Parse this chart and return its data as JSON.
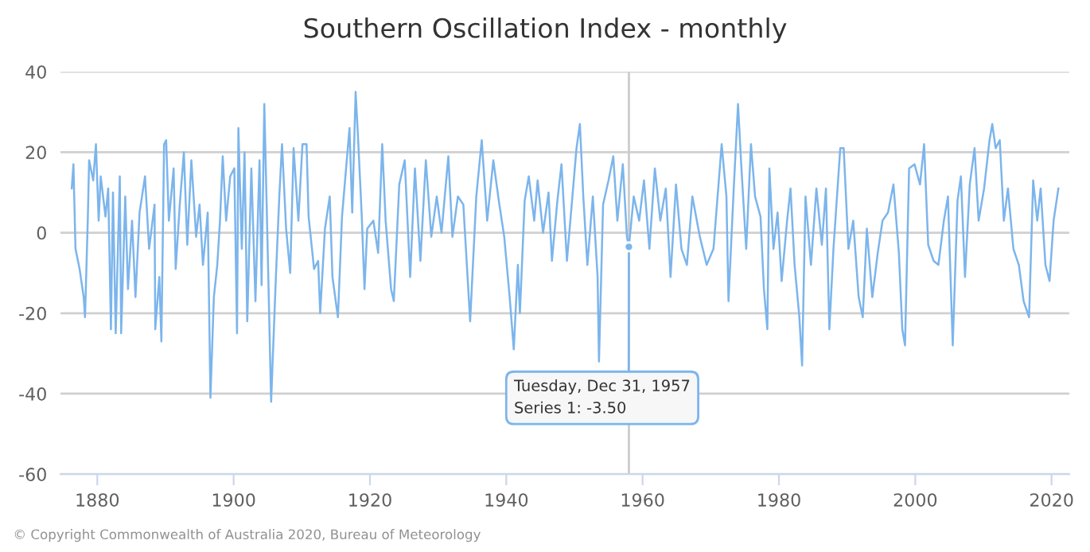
{
  "chart_data": {
    "type": "line",
    "title": "Southern Oscillation Index - monthly",
    "x": [
      1876.25,
      1876.5,
      1876.8,
      1877.4,
      1878.0,
      1878.2,
      1878.6,
      1878.8,
      1879.4,
      1879.8,
      1880.2,
      1880.5,
      1881.2,
      1881.6,
      1882.0,
      1882.3,
      1882.7,
      1883.3,
      1883.5,
      1884.1,
      1884.5,
      1885.1,
      1885.6,
      1886.2,
      1887.0,
      1887.6,
      1888.4,
      1888.5,
      1889.1,
      1889.4,
      1889.8,
      1890.1,
      1890.5,
      1891.2,
      1891.5,
      1892.1,
      1892.7,
      1893.2,
      1893.8,
      1894.5,
      1895.0,
      1895.5,
      1896.2,
      1896.6,
      1897.1,
      1897.6,
      1898.0,
      1898.4,
      1898.9,
      1899.5,
      1900.1,
      1900.5,
      1900.7,
      1901.2,
      1901.6,
      1902.0,
      1902.6,
      1903.2,
      1903.8,
      1904.1,
      1904.5,
      1904.9,
      1905.5,
      1906.2,
      1906.7,
      1907.1,
      1907.7,
      1908.3,
      1908.8,
      1909.5,
      1910.1,
      1910.7,
      1911.0,
      1911.8,
      1912.4,
      1912.7,
      1913.4,
      1914.1,
      1914.5,
      1915.3,
      1915.9,
      1916.5,
      1917.0,
      1917.4,
      1917.9,
      1918.3,
      1918.8,
      1919.2,
      1919.6,
      1920.5,
      1921.2,
      1921.8,
      1922.3,
      1923.1,
      1923.5,
      1924.3,
      1925.1,
      1925.9,
      1926.6,
      1927.4,
      1928.2,
      1929.0,
      1929.8,
      1930.5,
      1931.5,
      1932.1,
      1932.9,
      1933.7,
      1934.7,
      1935.6,
      1936.4,
      1937.2,
      1938.1,
      1938.9,
      1939.7,
      1940.5,
      1941.1,
      1941.7,
      1942.0,
      1942.7,
      1943.3,
      1944.1,
      1944.6,
      1945.4,
      1946.2,
      1946.7,
      1947.5,
      1948.1,
      1948.9,
      1949.7,
      1950.3,
      1950.8,
      1951.3,
      1951.9,
      1952.7,
      1953.4,
      1953.6,
      1954.2,
      1955.0,
      1955.7,
      1956.3,
      1957.1,
      1957.7,
      1957.99,
      1958.7,
      1959.5,
      1960.2,
      1961.0,
      1961.8,
      1962.6,
      1963.4,
      1964.1,
      1964.9,
      1965.7,
      1966.5,
      1967.3,
      1968.4,
      1969.4,
      1970.4,
      1971.6,
      1972.3,
      1972.6,
      1973.4,
      1974.0,
      1974.5,
      1975.2,
      1975.9,
      1976.5,
      1977.3,
      1977.8,
      1978.3,
      1978.6,
      1979.2,
      1979.8,
      1980.4,
      1981.2,
      1981.7,
      1982.3,
      1983.0,
      1983.4,
      1983.9,
      1984.7,
      1985.5,
      1986.3,
      1986.9,
      1987.4,
      1988.0,
      1989.0,
      1989.5,
      1990.2,
      1990.9,
      1991.7,
      1992.3,
      1992.9,
      1993.7,
      1994.5,
      1995.2,
      1996.0,
      1996.8,
      1997.6,
      1998.1,
      1998.5,
      1999.1,
      1999.9,
      2000.7,
      2001.3,
      2001.9,
      2002.7,
      2003.4,
      2004.2,
      2004.8,
      2005.5,
      2006.2,
      2006.7,
      2007.3,
      2008.0,
      2008.7,
      2009.3,
      2010.1,
      2010.9,
      2011.3,
      2011.8,
      2012.4,
      2013.0,
      2013.6,
      2014.4,
      2015.2,
      2015.9,
      2016.7,
      2017.3,
      2017.9,
      2018.4,
      2019.1,
      2019.7,
      2020.3,
      2021.0
    ],
    "series": [
      {
        "color": "#7cb5ec",
        "values": [
          11,
          17,
          -4,
          -9,
          -16,
          -21,
          3,
          18,
          13,
          22,
          3,
          14,
          4,
          11,
          -24,
          10,
          -25,
          14,
          -25,
          9,
          -14,
          3,
          -16,
          5,
          14,
          -4,
          7,
          -24,
          -11,
          -27,
          22,
          23,
          3,
          16,
          -9,
          7,
          20,
          -3,
          18,
          -1,
          7,
          -8,
          5,
          -41,
          -16,
          -8,
          3,
          19,
          3,
          14,
          16,
          -25,
          26,
          -4,
          20,
          -22,
          16,
          -17,
          18,
          -13,
          32,
          3,
          -42,
          -11,
          9,
          22,
          1,
          -10,
          21,
          3,
          22,
          22,
          4,
          -9,
          -7,
          -20,
          1,
          9,
          -11,
          -21,
          4,
          16,
          26,
          5,
          35,
          22,
          4,
          -14,
          1,
          3,
          -5,
          22,
          3,
          -14,
          -17,
          12,
          18,
          -11,
          16,
          -7,
          18,
          -1,
          9,
          0,
          19,
          -1,
          9,
          7,
          -22,
          9,
          23,
          3,
          18,
          8,
          -1,
          -16,
          -29,
          -8,
          -20,
          8,
          14,
          3,
          13,
          0,
          10,
          -7,
          8,
          17,
          -7,
          9,
          21,
          27,
          9,
          -8,
          9,
          -11,
          -32,
          7,
          13,
          19,
          3,
          17,
          -1,
          -3.5,
          9,
          3,
          13,
          -4,
          16,
          3,
          11,
          -11,
          12,
          -4,
          -8,
          9,
          -1,
          -8,
          -4,
          22,
          9,
          -17,
          12,
          32,
          16,
          -4,
          22,
          9,
          4,
          -14,
          -24,
          16,
          -4,
          5,
          -12,
          3,
          11,
          -8,
          -21,
          -33,
          9,
          -8,
          11,
          -3,
          11,
          -24,
          -4,
          21,
          21,
          -4,
          3,
          -16,
          -21,
          1,
          -16,
          -5,
          3,
          5,
          12,
          -5,
          -24,
          -28,
          16,
          17,
          12,
          22,
          -3,
          -7,
          -8,
          3,
          9,
          -28,
          8,
          14,
          -11,
          12,
          21,
          3,
          11,
          23,
          27,
          21,
          23,
          3,
          11,
          -4,
          -8,
          -17,
          -21,
          13,
          3,
          11,
          -8,
          -12,
          3,
          11
        ]
      }
    ],
    "xlim": [
      1874.6,
      2022.6
    ],
    "xticks": [
      1880,
      1900,
      1920,
      1940,
      1960,
      1980,
      2000,
      2020
    ],
    "ylim": [
      -60,
      40
    ],
    "yticks": [
      -60,
      -40,
      -20,
      0,
      20,
      40
    ],
    "grid": "y",
    "ref_lines": [
      {
        "axis": "x",
        "value": 1957.99,
        "color": "#cccccc"
      }
    ],
    "annotations": [
      "© Copyright Commonwealth of Australia 2020, Bureau of Meteorology",
      {
        "text": "Tuesday, Dec 31, 1957\nSeries 1: -3.50",
        "x": 1957.99,
        "y": -3.5
      }
    ]
  }
}
